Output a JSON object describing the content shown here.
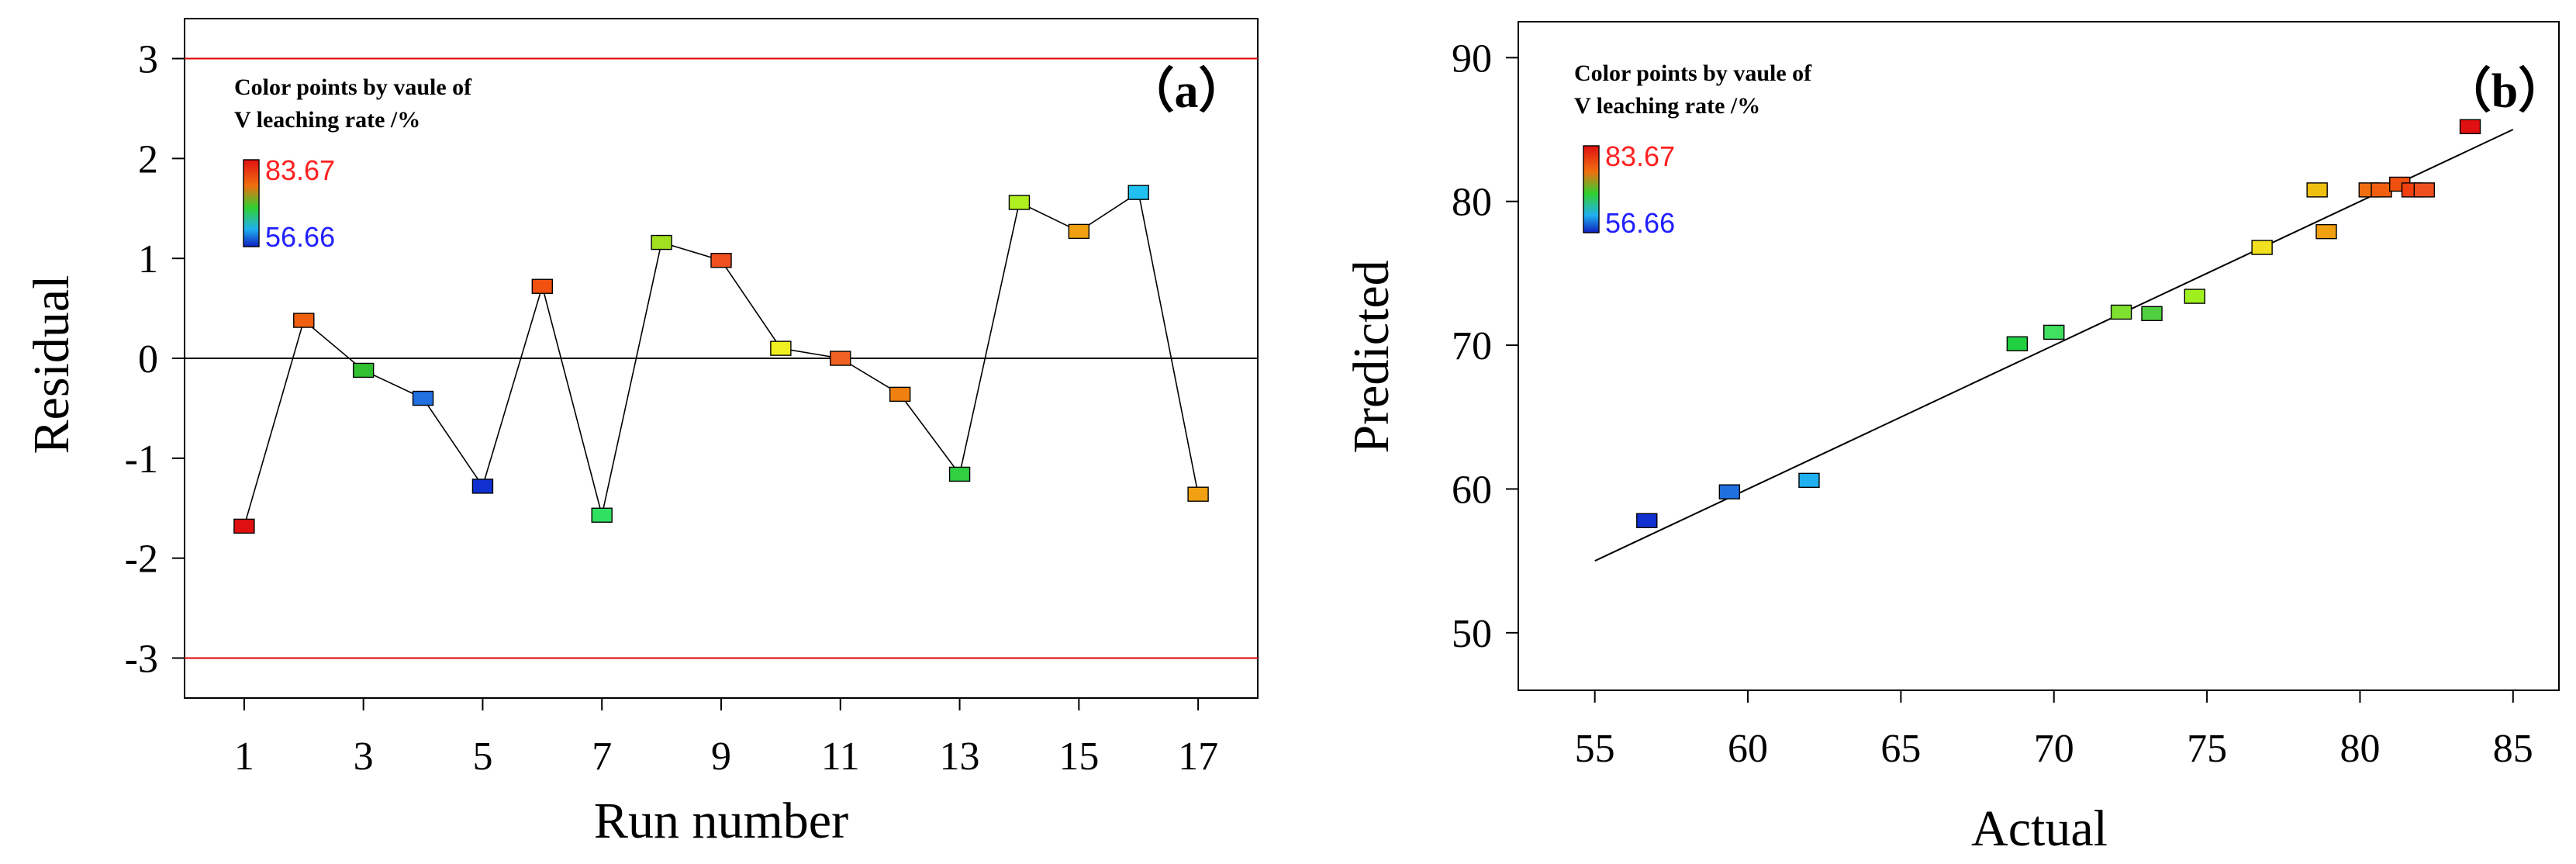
{
  "chart_data": [
    {
      "type": "scatter",
      "panel_label": "（a）",
      "xlabel": "Run number",
      "ylabel": "Residual",
      "xlim": [
        0,
        18
      ],
      "ylim": [
        -3.4,
        3.4
      ],
      "x_ticks": [
        1,
        3,
        5,
        7,
        9,
        11,
        13,
        15,
        17
      ],
      "x_tick_labels": [
        "1",
        "3",
        "5",
        "7",
        "9",
        "11",
        "13",
        "15",
        "17"
      ],
      "y_ticks": [
        3,
        2,
        1,
        0,
        -1,
        -2,
        -3
      ],
      "y_tick_labels": [
        "3",
        "2",
        "1",
        "0",
        "-1",
        "-2",
        "-3"
      ],
      "limit_lines": [
        3,
        -3
      ],
      "limit_line_color": "#e00000",
      "zero_line": 0,
      "connect_points": true,
      "grid": false,
      "legend": {
        "title_line1": "Color points by vaule of",
        "title_line2": "V leaching rate /%",
        "max_label": "83.67",
        "min_label": "56.66",
        "max_color": "#ff2020",
        "min_color": "#2020ff",
        "placement": "top-left"
      },
      "points": [
        {
          "x": 1,
          "y": -1.68,
          "color": "#e01010"
        },
        {
          "x": 2,
          "y": 0.38,
          "color": "#f06010"
        },
        {
          "x": 3,
          "y": -0.12,
          "color": "#30c030"
        },
        {
          "x": 4,
          "y": -0.4,
          "color": "#2070e0"
        },
        {
          "x": 5,
          "y": -1.28,
          "color": "#1030d0"
        },
        {
          "x": 6,
          "y": 0.72,
          "color": "#f05010"
        },
        {
          "x": 7,
          "y": -1.57,
          "color": "#30e060"
        },
        {
          "x": 8,
          "y": 1.16,
          "color": "#a0e020"
        },
        {
          "x": 9,
          "y": 0.98,
          "color": "#f05020"
        },
        {
          "x": 10,
          "y": 0.1,
          "color": "#f0f020"
        },
        {
          "x": 11,
          "y": 0.0,
          "color": "#f06020"
        },
        {
          "x": 12,
          "y": -0.36,
          "color": "#f08010"
        },
        {
          "x": 13,
          "y": -1.16,
          "color": "#30d040"
        },
        {
          "x": 14,
          "y": 1.56,
          "color": "#b0f020"
        },
        {
          "x": 15,
          "y": 1.27,
          "color": "#f0a010"
        },
        {
          "x": 16,
          "y": 1.66,
          "color": "#20c0f0"
        },
        {
          "x": 17,
          "y": -1.36,
          "color": "#f0a010"
        }
      ]
    },
    {
      "type": "scatter",
      "panel_label": "（b）",
      "xlabel": "Actual",
      "ylabel": "Predicted",
      "xlim": [
        52.5,
        86.5
      ],
      "ylim": [
        46,
        92.5
      ],
      "x_ticks": [
        55,
        60,
        65,
        70,
        75,
        80,
        85
      ],
      "x_tick_labels": [
        "55",
        "60",
        "65",
        "70",
        "75",
        "80",
        "85"
      ],
      "y_ticks": [
        90,
        80,
        70,
        60,
        50
      ],
      "y_tick_labels": [
        "90",
        "80",
        "70",
        "60",
        "50"
      ],
      "fit_line": {
        "x": [
          55,
          85
        ],
        "y": [
          55,
          85
        ]
      },
      "grid": false,
      "legend": {
        "title_line1": "Color points by vaule of",
        "title_line2": "V leaching rate /%",
        "max_label": "83.67",
        "min_label": "56.66",
        "max_color": "#ff2020",
        "min_color": "#2020ff",
        "placement": "top-left"
      },
      "points": [
        {
          "x": 56.7,
          "y": 57.8,
          "color": "#1030d0"
        },
        {
          "x": 59.4,
          "y": 59.8,
          "color": "#2070e0"
        },
        {
          "x": 62.0,
          "y": 60.6,
          "color": "#20b0f0"
        },
        {
          "x": 68.8,
          "y": 70.1,
          "color": "#20d040"
        },
        {
          "x": 70.0,
          "y": 70.9,
          "color": "#40e060"
        },
        {
          "x": 72.2,
          "y": 72.3,
          "color": "#80e030"
        },
        {
          "x": 73.2,
          "y": 72.2,
          "color": "#50d040"
        },
        {
          "x": 74.6,
          "y": 73.4,
          "color": "#a0f020"
        },
        {
          "x": 76.8,
          "y": 76.8,
          "color": "#f0e020"
        },
        {
          "x": 78.6,
          "y": 80.8,
          "color": "#f0c010"
        },
        {
          "x": 78.9,
          "y": 77.9,
          "color": "#f0a010"
        },
        {
          "x": 80.3,
          "y": 80.8,
          "color": "#f07010"
        },
        {
          "x": 80.7,
          "y": 80.8,
          "color": "#f06010"
        },
        {
          "x": 81.3,
          "y": 81.2,
          "color": "#f05010"
        },
        {
          "x": 81.7,
          "y": 80.8,
          "color": "#f04010"
        },
        {
          "x": 82.1,
          "y": 80.8,
          "color": "#f05020"
        },
        {
          "x": 83.6,
          "y": 85.2,
          "color": "#e01010"
        }
      ]
    }
  ]
}
